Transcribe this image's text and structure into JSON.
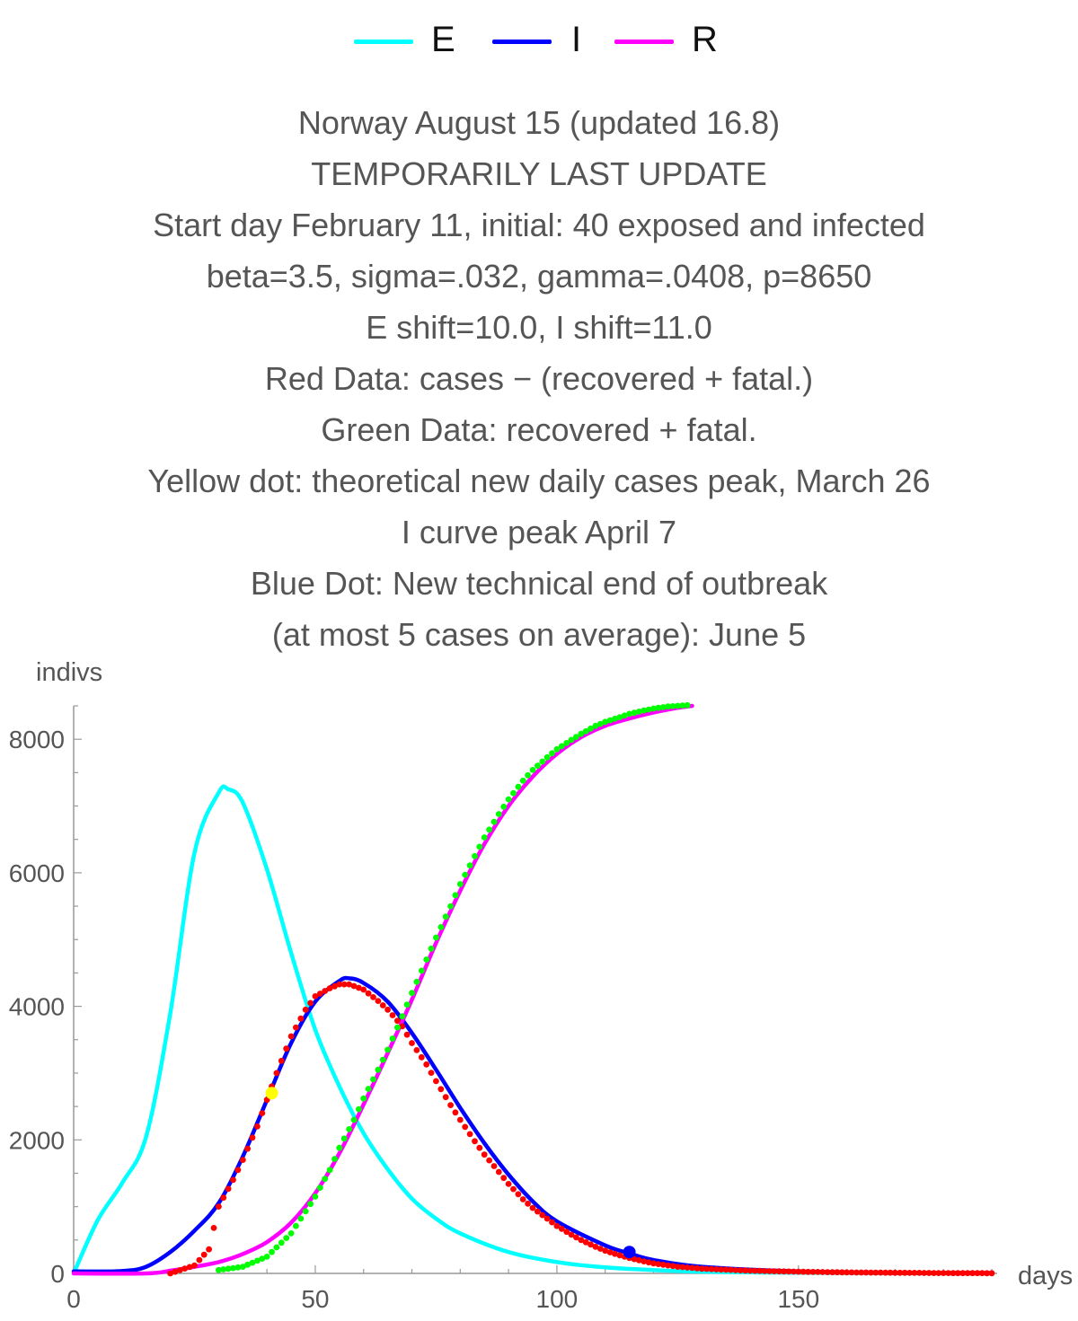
{
  "legend": [
    {
      "label": "E",
      "color": "#00ffff"
    },
    {
      "label": "I",
      "color": "#0000ff"
    },
    {
      "label": "R",
      "color": "#ff00ff"
    }
  ],
  "title_lines": [
    "Norway August 15 (updated 16.8)",
    "TEMPORARILY LAST UPDATE",
    "Start day February 11, initial: 40 exposed and infected",
    "beta=3.5, sigma=.032, gamma=.0408, p=8650",
    "E shift=10.0, I shift=11.0",
    "Red Data: cases − (recovered + fatal.)",
    "Green Data: recovered + fatal.",
    "Yellow dot: theoretical new daily cases peak, March 26",
    "I curve peak April 7",
    "Blue Dot: New technical end of outbreak",
    "(at most 5 cases on average): June 5"
  ],
  "chart_data": {
    "type": "line",
    "xlabel": "days",
    "ylabel": "indivs",
    "xlim": [
      0,
      190
    ],
    "ylim": [
      0,
      8500
    ],
    "xticks": [
      0,
      50,
      100,
      150
    ],
    "yticks": [
      0,
      2000,
      4000,
      6000,
      8000
    ],
    "series": [
      {
        "name": "E",
        "color": "#00ffff",
        "x": [
          0,
          5,
          10,
          15,
          20,
          25,
          30,
          32,
          35,
          40,
          45,
          50,
          55,
          60,
          65,
          70,
          75,
          80,
          90,
          100,
          110,
          120,
          130,
          150,
          170,
          190
        ],
        "y": [
          0,
          800,
          1350,
          2050,
          3900,
          6300,
          7200,
          7250,
          7050,
          6050,
          4800,
          3650,
          2800,
          2100,
          1560,
          1120,
          820,
          600,
          320,
          170,
          90,
          50,
          25,
          10,
          4,
          0
        ]
      },
      {
        "name": "I",
        "color": "#0000ff",
        "x": [
          0,
          10,
          15,
          20,
          25,
          30,
          35,
          40,
          45,
          50,
          55,
          57,
          60,
          65,
          70,
          75,
          80,
          85,
          90,
          95,
          100,
          110,
          115,
          120,
          130,
          150,
          170,
          190
        ],
        "y": [
          30,
          35,
          100,
          320,
          640,
          1050,
          1750,
          2600,
          3450,
          4070,
          4380,
          4420,
          4350,
          4070,
          3600,
          3050,
          2480,
          1950,
          1480,
          1080,
          780,
          420,
          300,
          200,
          100,
          30,
          10,
          5
        ]
      },
      {
        "name": "R",
        "color": "#ff00ff",
        "x": [
          0,
          15,
          20,
          25,
          30,
          35,
          40,
          45,
          50,
          55,
          60,
          65,
          70,
          75,
          80,
          85,
          90,
          95,
          100,
          105,
          110,
          115,
          120,
          125,
          128
        ],
        "y": [
          0,
          0,
          40,
          100,
          170,
          290,
          470,
          760,
          1200,
          1800,
          2530,
          3300,
          4100,
          4950,
          5730,
          6430,
          7000,
          7440,
          7780,
          8030,
          8200,
          8310,
          8400,
          8470,
          8500
        ]
      }
    ],
    "scatter_series": [
      {
        "name": "",
        "color": "#ff0000",
        "x": [
          20,
          25,
          28,
          30,
          33,
          35,
          38,
          40,
          42,
          45,
          48,
          50,
          53,
          55,
          57,
          60,
          63,
          65,
          68,
          70,
          73,
          75,
          78,
          80,
          83,
          85,
          88,
          90,
          93,
          95,
          98,
          100,
          103,
          105,
          108,
          110,
          113,
          115,
          118,
          120,
          125,
          130,
          140,
          150,
          160,
          170,
          180,
          190
        ],
        "y": [
          0,
          120,
          360,
          1000,
          1400,
          1700,
          2200,
          2600,
          3000,
          3550,
          3950,
          4150,
          4270,
          4330,
          4330,
          4250,
          4080,
          3950,
          3700,
          3450,
          3130,
          2880,
          2520,
          2300,
          1980,
          1780,
          1520,
          1340,
          1110,
          980,
          820,
          710,
          580,
          500,
          400,
          340,
          270,
          230,
          180,
          150,
          100,
          70,
          40,
          25,
          15,
          10,
          5,
          3
        ]
      },
      {
        "name": "",
        "color": "#00ff00",
        "x": [
          30,
          35,
          40,
          45,
          50,
          53,
          55,
          58,
          60,
          63,
          65,
          68,
          70,
          73,
          75,
          78,
          80,
          83,
          85,
          88,
          90,
          93,
          95,
          98,
          100,
          103,
          105,
          108,
          110,
          113,
          115,
          118,
          120,
          123,
          125,
          127
        ],
        "y": [
          50,
          100,
          250,
          600,
          1150,
          1550,
          1880,
          2300,
          2620,
          3050,
          3350,
          3850,
          4200,
          4700,
          5030,
          5500,
          5830,
          6250,
          6530,
          6880,
          7100,
          7380,
          7540,
          7730,
          7850,
          7990,
          8080,
          8200,
          8260,
          8330,
          8380,
          8430,
          8460,
          8490,
          8500,
          8510
        ]
      }
    ],
    "markers": [
      {
        "name": "yellow-dot",
        "color": "#ffff00",
        "x": 41,
        "y": 2700
      },
      {
        "name": "blue-dot",
        "color": "#0000ff",
        "x": 115,
        "y": 320
      }
    ]
  }
}
